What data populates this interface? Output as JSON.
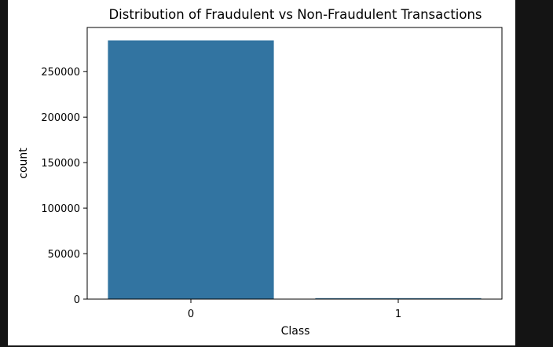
{
  "chart_data": {
    "type": "bar",
    "title": "Distribution of Fraudulent vs Non-Fraudulent Transactions",
    "xlabel": "Class",
    "ylabel": "count",
    "categories": [
      "0",
      "1"
    ],
    "values": [
      284315,
      492
    ],
    "ylim": [
      0,
      298526
    ],
    "yticks": [
      0,
      50000,
      100000,
      150000,
      200000,
      250000
    ],
    "ytick_labels": [
      "0",
      "50000",
      "100000",
      "150000",
      "200000",
      "250000"
    ],
    "bar_color": "#3274a1",
    "grid": false,
    "legend": "none"
  }
}
